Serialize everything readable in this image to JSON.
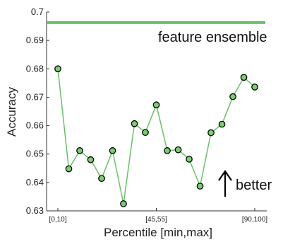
{
  "chart_data": {
    "type": "line",
    "xlabel": "Percentile [min,max]",
    "ylabel": "Accuracy",
    "ylim": [
      0.63,
      0.7
    ],
    "yticks": [
      "0.63",
      "0.64",
      "0.65",
      "0.66",
      "0.67",
      "0.68",
      "0.69",
      "0.7"
    ],
    "xtick_labels": [
      {
        "index": 0,
        "label": "[0,10]"
      },
      {
        "index": 9,
        "label": "[45,55]"
      },
      {
        "index": 18,
        "label": "[90,100]"
      }
    ],
    "series": [
      {
        "values": [
          0.68,
          0.6448,
          0.6512,
          0.648,
          0.6414,
          0.6512,
          0.6325,
          0.6607,
          0.6576,
          0.6673,
          0.6512,
          0.6515,
          0.6482,
          0.6387,
          0.6575,
          0.6605,
          0.6702,
          0.677,
          0.6736
        ],
        "color": "#6abf69",
        "marker_fill": "#7ccd72",
        "marker_edge": "#000000"
      }
    ],
    "reference_line": {
      "label": "feature ensemble",
      "value": 0.6963,
      "color": "#6abf69"
    },
    "annotations": [
      {
        "text": "better",
        "arrow": "up"
      }
    ],
    "grid": false
  }
}
